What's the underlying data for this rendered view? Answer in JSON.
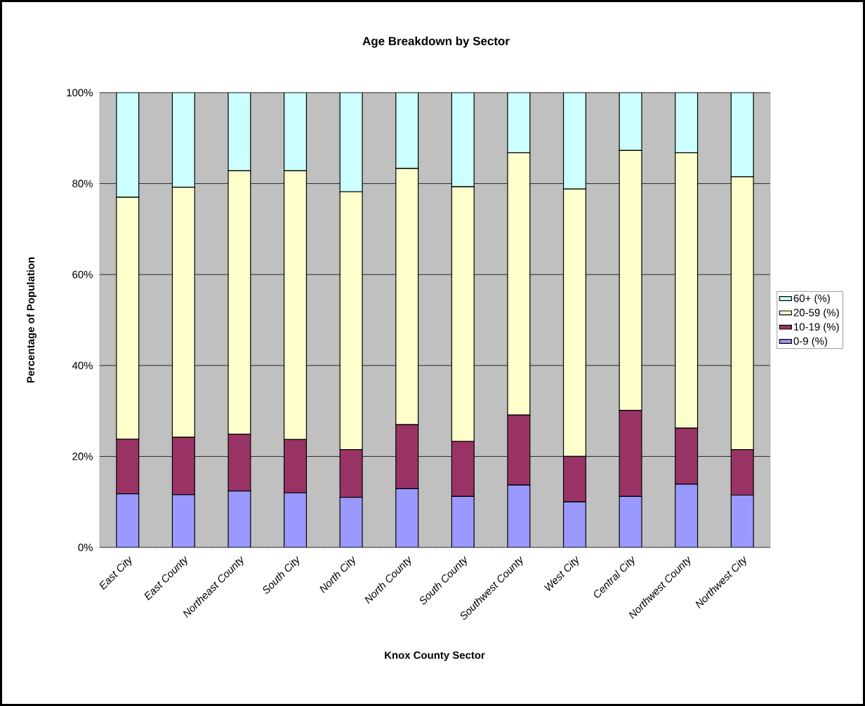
{
  "chart_data": {
    "type": "bar",
    "stacked": true,
    "title": "Age Breakdown by Sector",
    "xlabel": "Knox County Sector",
    "ylabel": "Percentage of Population",
    "categories": [
      "East City",
      "East County",
      "Northeast County",
      "South City",
      "North City",
      "North County",
      "South County",
      "Southwest County",
      "West City",
      "Central City",
      "Northwest  County",
      "Northwest City"
    ],
    "series": [
      {
        "name": "0-9 (%)",
        "color": "#9999ff",
        "values": [
          11.8,
          11.6,
          12.4,
          12.0,
          11.0,
          12.9,
          11.2,
          13.7,
          10.0,
          11.2,
          13.9,
          11.5
        ]
      },
      {
        "name": "10-19 (%)",
        "color": "#993366",
        "values": [
          12.0,
          12.6,
          12.5,
          11.7,
          10.5,
          14.1,
          12.1,
          15.4,
          10.0,
          18.9,
          12.3,
          10.0
        ]
      },
      {
        "name": "20-59 (%)",
        "color": "#ffffcc",
        "values": [
          53.2,
          55.0,
          57.9,
          59.1,
          56.7,
          56.3,
          56.0,
          57.7,
          58.8,
          57.2,
          60.6,
          60.0
        ]
      },
      {
        "name": "60+  (%)",
        "color": "#ccffff",
        "values": [
          23.0,
          20.8,
          17.2,
          17.2,
          21.8,
          16.7,
          20.7,
          13.2,
          21.2,
          12.7,
          13.2,
          18.5
        ]
      }
    ],
    "ylim": [
      0,
      100
    ],
    "yticks": [
      {
        "value": 0,
        "label": "0%"
      },
      {
        "value": 20,
        "label": "20%"
      },
      {
        "value": 40,
        "label": "40%"
      },
      {
        "value": 60,
        "label": "60%"
      },
      {
        "value": 80,
        "label": "80%"
      },
      {
        "value": 100,
        "label": "100%"
      }
    ],
    "grid": "y",
    "legend": "right"
  }
}
